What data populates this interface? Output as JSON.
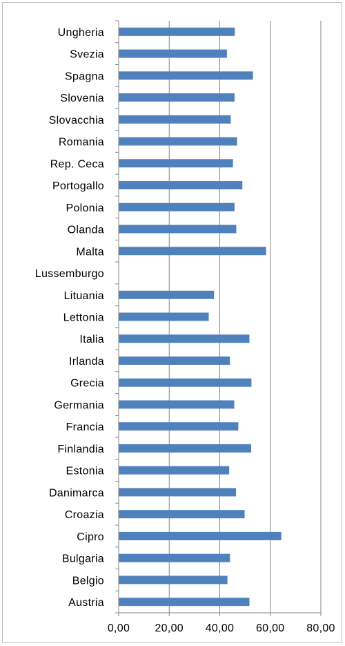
{
  "chart_data": {
    "type": "bar",
    "orientation": "horizontal",
    "categories": [
      "Ungheria",
      "Svezia",
      "Spagna",
      "Slovenia",
      "Slovacchia",
      "Romania",
      "Rep. Ceca",
      "Portogallo",
      "Polonia",
      "Olanda",
      "Malta",
      "Lussemburgo",
      "Lituania",
      "Lettonia",
      "Italia",
      "Irlanda",
      "Grecia",
      "Germania",
      "Francia",
      "Finlandia",
      "Estonia",
      "Danimarca",
      "Croazia",
      "Cipro",
      "Bulgaria",
      "Belgio",
      "Austria"
    ],
    "values": [
      45.8,
      42.7,
      53.0,
      45.7,
      44.2,
      46.7,
      45.1,
      48.8,
      45.7,
      46.4,
      58.2,
      null,
      37.6,
      35.5,
      51.6,
      43.9,
      52.4,
      45.6,
      47.2,
      52.3,
      43.6,
      46.3,
      49.7,
      64.2,
      43.9,
      42.9,
      51.6
    ],
    "x_ticks": [
      "0,00",
      "20,00",
      "40,00",
      "60,00",
      "80,00"
    ],
    "xlim": [
      0,
      80
    ],
    "grid": true,
    "bar_color": "#4f81bd",
    "title": "",
    "xlabel": "",
    "ylabel": ""
  }
}
